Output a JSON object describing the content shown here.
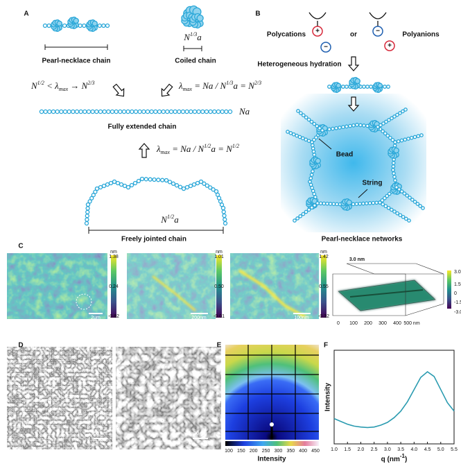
{
  "panel_labels": [
    "A",
    "B",
    "C",
    "D",
    "E",
    "F"
  ],
  "panel_a": {
    "pearl_necklace": "Pearl-necklace chain",
    "coiled": "Coiled chain",
    "coiled_size": [
      {
        "t": "N",
        "sup": "1/3"
      },
      {
        "t": "a"
      }
    ],
    "relation_left": [
      {
        "t": "N",
        "sup": "1/2"
      },
      {
        "t": " < λ",
        "sub": "max"
      },
      {
        "t": " → N",
        "sup": "2/3"
      }
    ],
    "relation_right": [
      {
        "t": "λ",
        "sub": "max"
      },
      {
        "t": " = Na / N",
        "sup": "1/3"
      },
      {
        "t": "a = N",
        "sup": "2/3"
      }
    ],
    "extended_length": [
      {
        "t": "Na"
      }
    ],
    "extended": "Fully extended chain",
    "relation_bottom": [
      {
        "t": "λ",
        "sub": "max"
      },
      {
        "t": " = Na / N",
        "sup": "1/2"
      },
      {
        "t": "a = N",
        "sup": "1/2"
      }
    ],
    "jointed_size": [
      {
        "t": "N",
        "sup": "1/2"
      },
      {
        "t": "a"
      }
    ],
    "jointed": "Freely jointed chain"
  },
  "panel_b": {
    "polycations": "Polycations",
    "or": "or",
    "polyanions": "Polyanions",
    "plus": "+",
    "minus": "−",
    "hydration": "Heterogeneous hydration",
    "bead": "Bead",
    "string": "String",
    "network": "Pearl-necklace networks"
  },
  "panel_c": {
    "images": [
      {
        "unit": "nm",
        "scale_ticks": [
          "1.38",
          "0.24",
          "-0.82"
        ],
        "scale_bar": "2μm"
      },
      {
        "unit": "nm",
        "scale_ticks": [
          "1.01",
          "0.50",
          "-0.01"
        ],
        "scale_bar": "200nm"
      },
      {
        "unit": "nm",
        "scale_ticks": [
          "1.42",
          "0.55",
          "-0.32"
        ],
        "scale_bar": "100nm"
      }
    ],
    "surface": {
      "title": "3.0 nm",
      "z_ticks": [
        "3.0 nm",
        "1.5",
        "0",
        "-1.5",
        "-3.0"
      ],
      "x_ticks": [
        "0",
        "100",
        "200",
        "300",
        "400",
        "500 nm"
      ]
    }
  },
  "panel_d": {
    "scale_bars": [
      "50 nm",
      "20 nm"
    ]
  },
  "panel_e": {
    "colorbar_ticks": [
      100,
      150,
      200,
      250,
      300,
      350,
      400,
      450
    ],
    "colorbar_label": "Intensity"
  },
  "chart_data": {
    "type": "line",
    "y_label": "Intensity",
    "x_label": [
      {
        "t": "q"
      },
      {
        "t": " (nm",
        "sup": "-1"
      },
      {
        "t": ")"
      }
    ],
    "x": [
      1.0,
      1.25,
      1.5,
      1.75,
      2.0,
      2.25,
      2.5,
      2.75,
      3.0,
      3.25,
      3.5,
      3.75,
      4.0,
      4.25,
      4.5,
      4.75,
      5.0,
      5.25,
      5.5
    ],
    "values": [
      0.27,
      0.24,
      0.21,
      0.19,
      0.18,
      0.175,
      0.18,
      0.2,
      0.23,
      0.28,
      0.35,
      0.45,
      0.58,
      0.71,
      0.77,
      0.72,
      0.58,
      0.44,
      0.35
    ],
    "color": "#2a9bb0",
    "xlim": [
      1.0,
      5.5
    ],
    "ylim": [
      0,
      1
    ],
    "xticks": [
      {
        "value": 1,
        "label": "1.0"
      },
      1.5,
      {
        "value": 2,
        "label": "2.0"
      },
      2.5,
      {
        "value": 3,
        "label": "3.0"
      },
      3.5,
      {
        "value": 4,
        "label": "4.0"
      },
      4.5,
      {
        "value": 5,
        "label": "5.0"
      },
      5.5
    ]
  }
}
